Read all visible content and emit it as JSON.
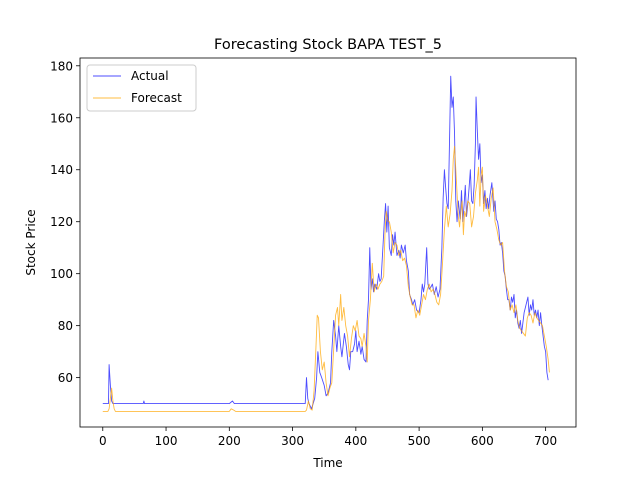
{
  "chart_data": {
    "type": "line",
    "title": "Forecasting Stock BAPA TEST_5",
    "xlabel": "Time",
    "ylabel": "Stock Price",
    "xlim": [
      -36,
      748
    ],
    "ylim": [
      41,
      183
    ],
    "xticks": [
      0,
      100,
      200,
      300,
      400,
      500,
      600,
      700
    ],
    "yticks": [
      60,
      80,
      100,
      120,
      140,
      160,
      180
    ],
    "grid": false,
    "legend_position": "top-left",
    "series": [
      {
        "name": "Actual",
        "color": "#0000ff",
        "points": [
          [
            0,
            50
          ],
          [
            6,
            50
          ],
          [
            9,
            50
          ],
          [
            10,
            65
          ],
          [
            12,
            57
          ],
          [
            14,
            51
          ],
          [
            16,
            50
          ],
          [
            40,
            50
          ],
          [
            64,
            50
          ],
          [
            65,
            51
          ],
          [
            66,
            50
          ],
          [
            200,
            50
          ],
          [
            205,
            51
          ],
          [
            208,
            50
          ],
          [
            320,
            50
          ],
          [
            322,
            60
          ],
          [
            324,
            52
          ],
          [
            326,
            50
          ],
          [
            330,
            48
          ],
          [
            335,
            52
          ],
          [
            338,
            60
          ],
          [
            340,
            70
          ],
          [
            343,
            62
          ],
          [
            346,
            60
          ],
          [
            350,
            57
          ],
          [
            353,
            53
          ],
          [
            356,
            54
          ],
          [
            360,
            58
          ],
          [
            362,
            70
          ],
          [
            365,
            82
          ],
          [
            368,
            76
          ],
          [
            370,
            70
          ],
          [
            373,
            80
          ],
          [
            376,
            72
          ],
          [
            378,
            68
          ],
          [
            382,
            77
          ],
          [
            385,
            72
          ],
          [
            388,
            65
          ],
          [
            390,
            63
          ],
          [
            392,
            70
          ],
          [
            395,
            70
          ],
          [
            398,
            73
          ],
          [
            400,
            78
          ],
          [
            402,
            70
          ],
          [
            405,
            74
          ],
          [
            408,
            69
          ],
          [
            410,
            72
          ],
          [
            413,
            67
          ],
          [
            416,
            66
          ],
          [
            418,
            82
          ],
          [
            420,
            90
          ],
          [
            422,
            110
          ],
          [
            424,
            94
          ],
          [
            426,
            98
          ],
          [
            428,
            93
          ],
          [
            430,
            96
          ],
          [
            433,
            94
          ],
          [
            436,
            100
          ],
          [
            438,
            97
          ],
          [
            440,
            98
          ],
          [
            443,
            111
          ],
          [
            445,
            120
          ],
          [
            447,
            127
          ],
          [
            449,
            116
          ],
          [
            451,
            126
          ],
          [
            453,
            110
          ],
          [
            456,
            107
          ],
          [
            458,
            115
          ],
          [
            460,
            111
          ],
          [
            462,
            116
          ],
          [
            465,
            107
          ],
          [
            468,
            109
          ],
          [
            470,
            106
          ],
          [
            472,
            111
          ],
          [
            475,
            108
          ],
          [
            478,
            111
          ],
          [
            480,
            105
          ],
          [
            483,
            101
          ],
          [
            485,
            92
          ],
          [
            488,
            90
          ],
          [
            490,
            88
          ],
          [
            493,
            90
          ],
          [
            496,
            86
          ],
          [
            500,
            85
          ],
          [
            503,
            90
          ],
          [
            505,
            96
          ],
          [
            507,
            93
          ],
          [
            509,
            96
          ],
          [
            512,
            110
          ],
          [
            514,
            96
          ],
          [
            516,
            94
          ],
          [
            519,
            95
          ],
          [
            521,
            96
          ],
          [
            524,
            92
          ],
          [
            527,
            95
          ],
          [
            530,
            91
          ],
          [
            533,
            94
          ],
          [
            536,
            110
          ],
          [
            538,
            129
          ],
          [
            540,
            140
          ],
          [
            542,
            133
          ],
          [
            544,
            127
          ],
          [
            546,
            125
          ],
          [
            548,
            150
          ],
          [
            550,
            176
          ],
          [
            552,
            164
          ],
          [
            554,
            168
          ],
          [
            556,
            154
          ],
          [
            558,
            128
          ],
          [
            560,
            120
          ],
          [
            562,
            128
          ],
          [
            565,
            121
          ],
          [
            567,
            132
          ],
          [
            569,
            120
          ],
          [
            571,
            126
          ],
          [
            573,
            134
          ],
          [
            575,
            122
          ],
          [
            577,
            127
          ],
          [
            579,
            133
          ],
          [
            581,
            140
          ],
          [
            583,
            128
          ],
          [
            585,
            127
          ],
          [
            587,
            134
          ],
          [
            589,
            150
          ],
          [
            590,
            168
          ],
          [
            592,
            155
          ],
          [
            594,
            144
          ],
          [
            596,
            150
          ],
          [
            598,
            135
          ],
          [
            600,
            138
          ],
          [
            602,
            127
          ],
          [
            604,
            132
          ],
          [
            606,
            125
          ],
          [
            608,
            129
          ],
          [
            610,
            125
          ],
          [
            612,
            130
          ],
          [
            615,
            135
          ],
          [
            618,
            124
          ],
          [
            620,
            128
          ],
          [
            622,
            121
          ],
          [
            624,
            120
          ],
          [
            626,
            117
          ],
          [
            628,
            111
          ],
          [
            630,
            112
          ],
          [
            632,
            108
          ],
          [
            634,
            101
          ],
          [
            636,
            99
          ],
          [
            638,
            94
          ],
          [
            640,
            90
          ],
          [
            642,
            90
          ],
          [
            644,
            86
          ],
          [
            646,
            91
          ],
          [
            648,
            89
          ],
          [
            650,
            92
          ],
          [
            652,
            83
          ],
          [
            654,
            86
          ],
          [
            656,
            81
          ],
          [
            658,
            79
          ],
          [
            660,
            82
          ],
          [
            662,
            77
          ],
          [
            664,
            81
          ],
          [
            666,
            85
          ],
          [
            668,
            87
          ],
          [
            670,
            89
          ],
          [
            672,
            91
          ],
          [
            674,
            84
          ],
          [
            676,
            88
          ],
          [
            678,
            86
          ],
          [
            680,
            90
          ],
          [
            682,
            84
          ],
          [
            684,
            86
          ],
          [
            686,
            83
          ],
          [
            688,
            86
          ],
          [
            690,
            80
          ],
          [
            692,
            85
          ],
          [
            694,
            80
          ],
          [
            696,
            76
          ],
          [
            698,
            72
          ],
          [
            700,
            70
          ],
          [
            702,
            62
          ],
          [
            704,
            59
          ]
        ]
      },
      {
        "name": "Forecast",
        "color": "#ffa500",
        "points": [
          [
            0,
            47
          ],
          [
            5,
            47
          ],
          [
            8,
            47
          ],
          [
            10,
            48
          ],
          [
            12,
            52
          ],
          [
            14,
            56
          ],
          [
            16,
            51
          ],
          [
            18,
            48
          ],
          [
            20,
            47
          ],
          [
            200,
            47
          ],
          [
            203,
            48
          ],
          [
            207,
            47.5
          ],
          [
            210,
            47
          ],
          [
            320,
            47
          ],
          [
            322,
            47.5
          ],
          [
            325,
            51
          ],
          [
            328,
            48
          ],
          [
            331,
            47.5
          ],
          [
            334,
            55
          ],
          [
            337,
            72
          ],
          [
            339,
            84
          ],
          [
            341,
            83
          ],
          [
            344,
            70
          ],
          [
            347,
            63
          ],
          [
            350,
            66
          ],
          [
            353,
            58
          ],
          [
            356,
            53
          ],
          [
            359,
            56
          ],
          [
            362,
            58
          ],
          [
            365,
            71
          ],
          [
            368,
            84
          ],
          [
            371,
            87
          ],
          [
            373,
            80
          ],
          [
            376,
            92
          ],
          [
            378,
            82
          ],
          [
            381,
            87
          ],
          [
            384,
            80
          ],
          [
            387,
            76
          ],
          [
            390,
            68
          ],
          [
            393,
            75
          ],
          [
            396,
            80
          ],
          [
            399,
            78
          ],
          [
            402,
            82
          ],
          [
            405,
            76
          ],
          [
            408,
            75
          ],
          [
            410,
            72
          ],
          [
            413,
            77
          ],
          [
            416,
            72
          ],
          [
            418,
            66
          ],
          [
            420,
            82
          ],
          [
            423,
            90
          ],
          [
            426,
            104
          ],
          [
            429,
            93
          ],
          [
            432,
            96
          ],
          [
            435,
            94
          ],
          [
            438,
            96
          ],
          [
            441,
            97
          ],
          [
            444,
            99
          ],
          [
            446,
            115
          ],
          [
            448,
            124
          ],
          [
            451,
            120
          ],
          [
            453,
            120
          ],
          [
            456,
            116
          ],
          [
            459,
            108
          ],
          [
            462,
            112
          ],
          [
            465,
            111
          ],
          [
            468,
            107
          ],
          [
            471,
            109
          ],
          [
            474,
            105
          ],
          [
            477,
            106
          ],
          [
            480,
            103
          ],
          [
            483,
            95
          ],
          [
            486,
            91
          ],
          [
            489,
            88
          ],
          [
            492,
            88
          ],
          [
            495,
            83
          ],
          [
            498,
            86
          ],
          [
            501,
            84
          ],
          [
            504,
            88
          ],
          [
            507,
            92
          ],
          [
            510,
            90
          ],
          [
            513,
            94
          ],
          [
            516,
            96
          ],
          [
            519,
            93
          ],
          [
            522,
            94
          ],
          [
            525,
            92
          ],
          [
            528,
            89
          ],
          [
            531,
            88
          ],
          [
            534,
            92
          ],
          [
            537,
            104
          ],
          [
            540,
            117
          ],
          [
            543,
            126
          ],
          [
            546,
            118
          ],
          [
            549,
            123
          ],
          [
            552,
            132
          ],
          [
            554,
            144
          ],
          [
            556,
            149
          ],
          [
            558,
            140
          ],
          [
            560,
            131
          ],
          [
            562,
            122
          ],
          [
            564,
            118
          ],
          [
            566,
            124
          ],
          [
            568,
            128
          ],
          [
            570,
            115
          ],
          [
            572,
            124
          ],
          [
            574,
            122
          ],
          [
            577,
            128
          ],
          [
            580,
            127
          ],
          [
            583,
            118
          ],
          [
            586,
            122
          ],
          [
            589,
            131
          ],
          [
            592,
            136
          ],
          [
            594,
            141
          ],
          [
            596,
            126
          ],
          [
            598,
            138
          ],
          [
            600,
            141
          ],
          [
            602,
            124
          ],
          [
            605,
            130
          ],
          [
            608,
            126
          ],
          [
            611,
            122
          ],
          [
            614,
            129
          ],
          [
            617,
            133
          ],
          [
            620,
            120
          ],
          [
            623,
            117
          ],
          [
            626,
            113
          ],
          [
            629,
            111
          ],
          [
            632,
            112
          ],
          [
            635,
            101
          ],
          [
            638,
            95
          ],
          [
            641,
            93
          ],
          [
            644,
            86
          ],
          [
            647,
            88
          ],
          [
            650,
            85
          ],
          [
            653,
            88
          ],
          [
            656,
            82
          ],
          [
            659,
            79
          ],
          [
            662,
            78
          ],
          [
            665,
            77
          ],
          [
            668,
            76
          ],
          [
            671,
            83
          ],
          [
            674,
            85
          ],
          [
            677,
            84
          ],
          [
            680,
            81
          ],
          [
            683,
            85
          ],
          [
            686,
            83
          ],
          [
            689,
            82
          ],
          [
            692,
            81
          ],
          [
            695,
            80
          ],
          [
            698,
            76
          ],
          [
            701,
            72
          ],
          [
            704,
            67
          ],
          [
            706,
            62
          ]
        ]
      }
    ]
  }
}
